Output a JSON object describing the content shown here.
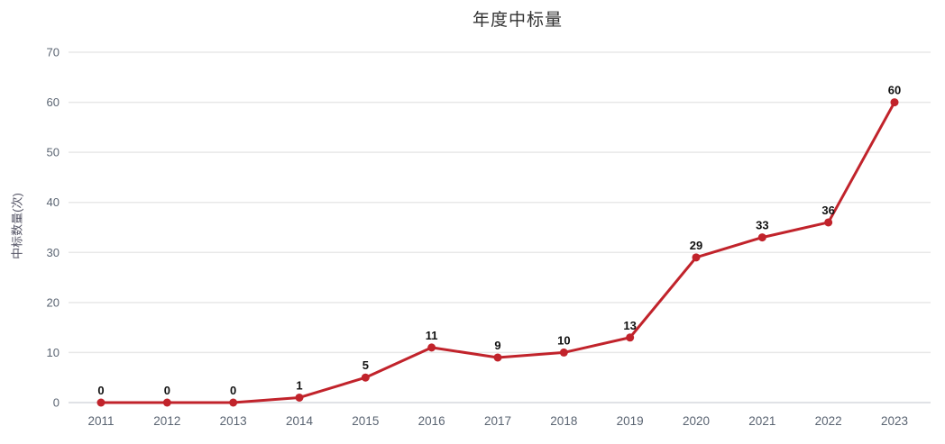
{
  "chart_data": {
    "type": "line",
    "title": "年度中标量",
    "xlabel": "",
    "ylabel": "中标数量(次)",
    "categories": [
      "2011",
      "2012",
      "2013",
      "2014",
      "2015",
      "2016",
      "2017",
      "2018",
      "2019",
      "2020",
      "2021",
      "2022",
      "2023"
    ],
    "series": [
      {
        "name": "年度中标量",
        "values": [
          0,
          0,
          0,
          1,
          5,
          11,
          9,
          10,
          13,
          29,
          33,
          36,
          60
        ]
      }
    ],
    "data_labels": [
      0,
      0,
      0,
      1,
      5,
      11,
      9,
      10,
      13,
      29,
      33,
      36,
      60
    ],
    "y_ticks": [
      0,
      10,
      20,
      30,
      40,
      50,
      60,
      70
    ],
    "ylim": [
      0,
      70
    ],
    "grid": "horizontal",
    "legend": "none",
    "colors": {
      "line": "#c1232b",
      "marker": "#c1232b",
      "grid_line": "#e8e8e8",
      "zero_line": "#d5d8de",
      "tick_text": "#5a6472",
      "data_label_text": "#111111",
      "title_text": "#333333",
      "background": "#ffffff"
    }
  }
}
